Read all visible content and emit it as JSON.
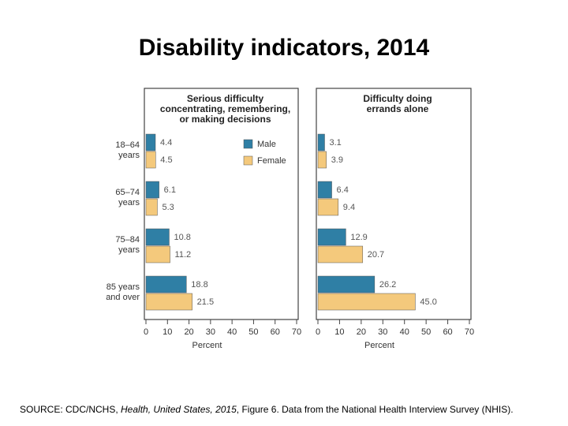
{
  "header": {
    "title": "Disability indicators, 2014"
  },
  "source": {
    "prefix": "SOURCE: CDC/NCHS, ",
    "italic": "Health, United States, 2015",
    "suffix": ", Figure 6. Data from the National Health Interview Survey (NHIS)."
  },
  "chart_data": [
    {
      "type": "bar",
      "orientation": "horizontal",
      "title_lines": [
        "Serious difficulty",
        "concentrating, remembering,",
        "or making decisions"
      ],
      "categories": [
        [
          "18–64",
          "years"
        ],
        [
          "65–74",
          "years"
        ],
        [
          "75–84",
          "years"
        ],
        [
          "85 years",
          "and over"
        ]
      ],
      "series": [
        {
          "name": "Male",
          "color": "#2f7fa5",
          "values": [
            4.4,
            6.1,
            10.8,
            18.8
          ]
        },
        {
          "name": "Female",
          "color": "#f4c97c",
          "values": [
            4.5,
            5.3,
            11.2,
            21.5
          ]
        }
      ],
      "xlabel": "Percent",
      "xlim": [
        0,
        70
      ],
      "xticks": [
        0,
        10,
        20,
        30,
        40,
        50,
        60,
        70
      ],
      "legend": "upper-right"
    },
    {
      "type": "bar",
      "orientation": "horizontal",
      "title_lines": [
        "Difficulty doing",
        "errands alone"
      ],
      "series": [
        {
          "color": "#2f7fa5",
          "values": [
            3.1,
            6.4,
            12.9,
            26.2
          ]
        },
        {
          "color": "#f4c97c",
          "values": [
            3.9,
            9.4,
            20.7,
            45
          ],
          "value_labels": [
            null,
            null,
            null,
            "45.0"
          ]
        }
      ],
      "xlabel": "Percent",
      "xlim": [
        0,
        70
      ],
      "xticks": [
        0,
        10,
        20,
        30,
        40,
        50,
        60,
        70
      ]
    }
  ]
}
